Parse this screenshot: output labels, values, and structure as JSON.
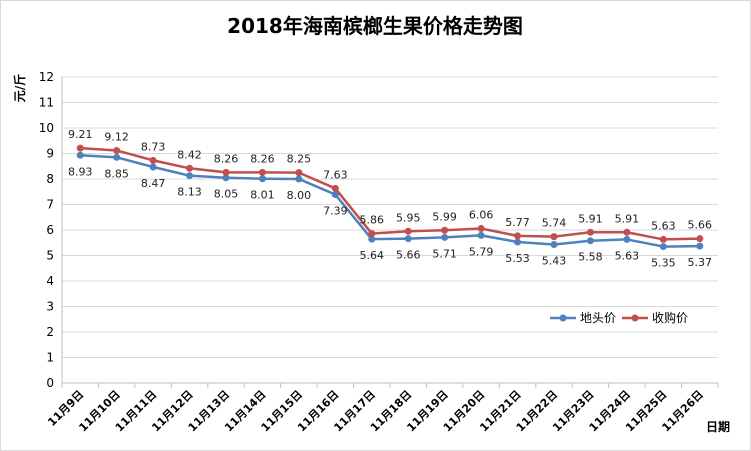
{
  "chart_data": {
    "type": "line",
    "title": "2018年海南槟榔生果价格走势图",
    "ylabel": "元/斤",
    "xlabel": "日期",
    "ylim": [
      0,
      12
    ],
    "yticks": [
      "0",
      "1",
      "2",
      "3",
      "4",
      "5",
      "6",
      "7",
      "8",
      "9",
      "10",
      "11",
      "12"
    ],
    "grid": true,
    "legend_position": "right-middle",
    "categories": [
      "11月9日",
      "11月10日",
      "11月11日",
      "11月12日",
      "11月13日",
      "11月14日",
      "11月15日",
      "11月16日",
      "11月17日",
      "11月18日",
      "11月19日",
      "11月20日",
      "11月21日",
      "11月22日",
      "11月23日",
      "11月24日",
      "11月25日",
      "11月26日"
    ],
    "series": [
      {
        "name": "地头价",
        "color": "#4F81BD",
        "values": [
          8.93,
          8.85,
          8.47,
          8.13,
          8.05,
          8.01,
          8.0,
          7.39,
          5.64,
          5.66,
          5.71,
          5.79,
          5.53,
          5.43,
          5.58,
          5.63,
          5.35,
          5.37
        ],
        "labels": [
          "8.93",
          "8.85",
          "8.47",
          "8.13",
          "8.05",
          "8.01",
          "8.00",
          "7.39",
          "5.64",
          "5.66",
          "5.71",
          "5.79",
          "5.53",
          "5.43",
          "5.58",
          "5.63",
          "5.35",
          "5.37"
        ],
        "label_position": "below"
      },
      {
        "name": "收购价",
        "color": "#C0504D",
        "values": [
          9.21,
          9.12,
          8.73,
          8.42,
          8.26,
          8.26,
          8.25,
          7.63,
          5.86,
          5.95,
          5.99,
          6.06,
          5.77,
          5.74,
          5.91,
          5.91,
          5.63,
          5.66
        ],
        "labels": [
          "9.21",
          "9.12",
          "8.73",
          "8.42",
          "8.26",
          "8.26",
          "8.25",
          "7.63",
          "5.86",
          "5.95",
          "5.99",
          "6.06",
          "5.77",
          "5.74",
          "5.91",
          "5.91",
          "5.63",
          "5.66"
        ],
        "label_position": "above"
      }
    ]
  }
}
